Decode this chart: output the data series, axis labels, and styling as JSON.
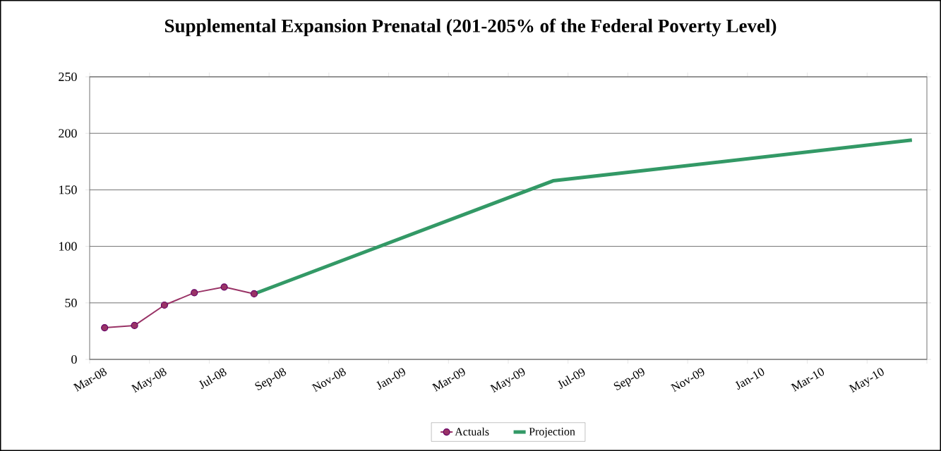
{
  "chart_data": {
    "type": "line",
    "title": "Supplemental Expansion Prenatal (201-205% of the Federal Poverty Level)",
    "categories": [
      "Mar-08",
      null,
      "May-08",
      null,
      "Jul-08",
      null,
      "Sep-08",
      null,
      "Nov-08",
      null,
      "Jan-09",
      null,
      "Mar-09",
      null,
      "May-09",
      null,
      "Jul-09",
      null,
      "Sep-09",
      null,
      "Nov-09",
      null,
      "Jan-10",
      null,
      "Mar-10",
      null,
      "May-10",
      null
    ],
    "series": [
      {
        "name": "Actuals",
        "color": "#993366",
        "marker": "circle",
        "values": [
          28,
          30,
          48,
          59,
          64,
          58,
          null,
          null,
          null,
          null,
          null,
          null,
          null,
          null,
          null,
          null,
          null,
          null,
          null,
          null,
          null,
          null,
          null,
          null,
          null,
          null,
          null,
          null
        ]
      },
      {
        "name": "Projection",
        "color": "#339966",
        "marker": "none",
        "values": [
          null,
          null,
          null,
          null,
          null,
          58,
          null,
          null,
          null,
          null,
          null,
          null,
          null,
          null,
          null,
          158,
          null,
          null,
          null,
          null,
          null,
          null,
          null,
          null,
          null,
          null,
          null,
          194
        ]
      }
    ],
    "ylim": [
      0,
      250
    ],
    "yticks": [
      0,
      50,
      100,
      150,
      200,
      250
    ],
    "grid": "y",
    "legend": "bottom"
  }
}
